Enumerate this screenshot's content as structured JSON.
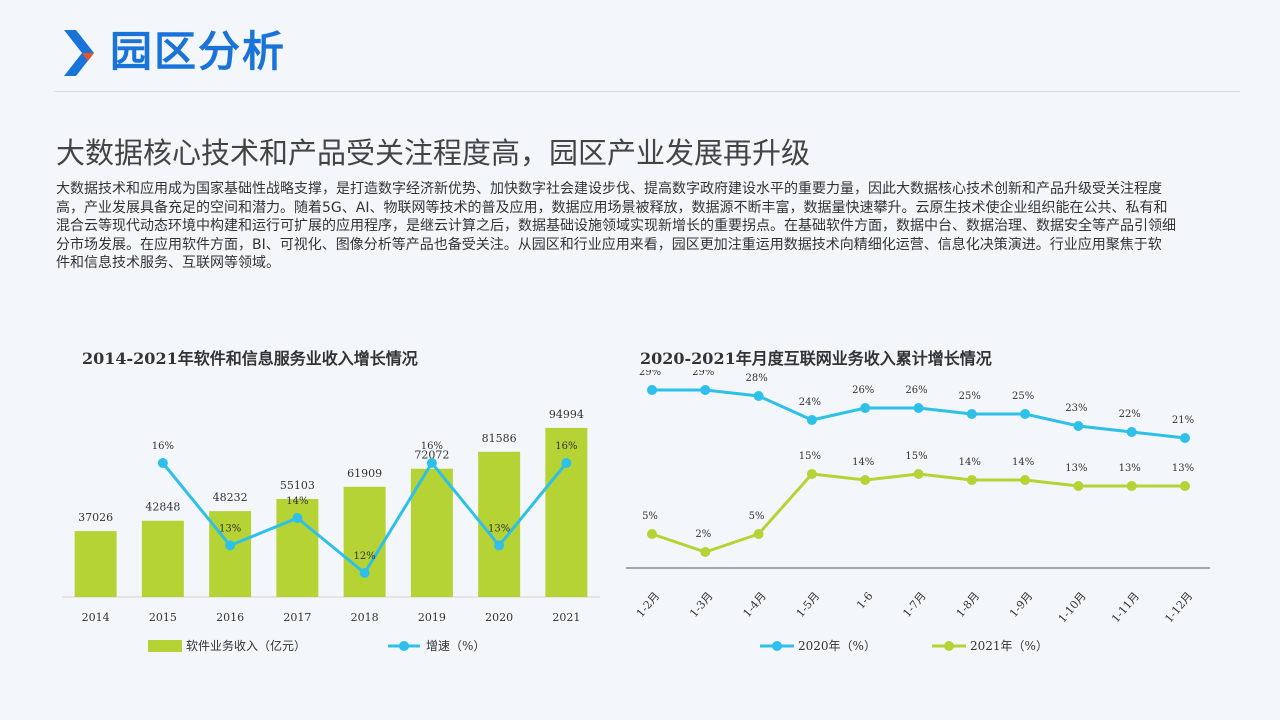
{
  "header": {
    "title": "园区分析",
    "accent_blue": "#1a73d9",
    "accent_orange": "#e8532b"
  },
  "headline": "大数据核心技术和产品受关注程度高，园区产业发展再升级",
  "body_text": "大数据技术和应用成为国家基础性战略支撑，是打造数字经济新优势、加快数字社会建设步伐、提高数字政府建设水平的重要力量，因此大数据核心技术创新和产品升级受关注程度高，产业发展具备充足的空间和潜力。随着5G、AI、物联网等技术的普及应用，数据应用场景被释放，数据源不断丰富，数据量快速攀升。云原生技术使企业组织能在公共、私有和 混合云等现代动态环境中构建和运行可扩展的应用程序，是继云计算之后，数据基础设施领域实现新增长的重要拐点。在基础软件方面，数据中台、数据治理、数据安全等产品引领细分市场发展。在应用软件方面，BI、可视化、图像分析等产品也备受关注。从园区和行业应用来看，园区更加注重运用数据技术向精细化运营、信息化决策演进。行业应用聚焦于软 件和信息技术服务、互联网等领域。",
  "chart_data": [
    {
      "type": "bar",
      "title": "2014-2021年软件和信息服务业收入增长情况",
      "categories": [
        "2014",
        "2015",
        "2016",
        "2017",
        "2018",
        "2019",
        "2020",
        "2021"
      ],
      "series": [
        {
          "name": "软件业务收入（亿元）",
          "type": "bar",
          "color": "#b5d334",
          "values": [
            37026,
            42848,
            48232,
            55103,
            61909,
            72072,
            81586,
            94994
          ],
          "labels": [
            "37026",
            "42848",
            "48232",
            "55103",
            "61909",
            "72072",
            "81586",
            "94994"
          ]
        },
        {
          "name": "增速（%）",
          "type": "line",
          "color": "#2ec0e8",
          "values": [
            null,
            16,
            13,
            14,
            12,
            16,
            13,
            16
          ],
          "labels": [
            "",
            "16%",
            "13%",
            "14%",
            "12%",
            "16%",
            "13%",
            "16%"
          ]
        }
      ],
      "ylim": [
        0,
        100000
      ],
      "y2lim": [
        0,
        20
      ],
      "grid": false,
      "legend": "bottom"
    },
    {
      "type": "line",
      "title": "2020-2021年月度互联网业务收入累计增长情况",
      "categories": [
        "1-2月",
        "1-3月",
        "1-4月",
        "1-5月",
        "1-6",
        "1-7月",
        "1-8月",
        "1-9月",
        "1-10月",
        "1-11月",
        "1-12月"
      ],
      "series": [
        {
          "name": "2020年（%）",
          "color": "#2ec0e8",
          "values": [
            29,
            29,
            28,
            24,
            26,
            26,
            25,
            25,
            23,
            22,
            21
          ],
          "labels": [
            "29%",
            "29%",
            "28%",
            "24%",
            "26%",
            "26%",
            "25%",
            "25%",
            "23%",
            "22%",
            "21%"
          ]
        },
        {
          "name": "2021年（%）",
          "color": "#b5d334",
          "values": [
            5,
            2,
            5,
            15,
            14,
            15,
            14,
            14,
            13,
            13,
            13
          ],
          "labels": [
            "5%",
            "2%",
            "5%",
            "15%",
            "14%",
            "15%",
            "14%",
            "14%",
            "13%",
            "13%",
            "13%"
          ]
        }
      ],
      "ylim": [
        0,
        30
      ],
      "grid": false,
      "legend": "bottom"
    }
  ]
}
